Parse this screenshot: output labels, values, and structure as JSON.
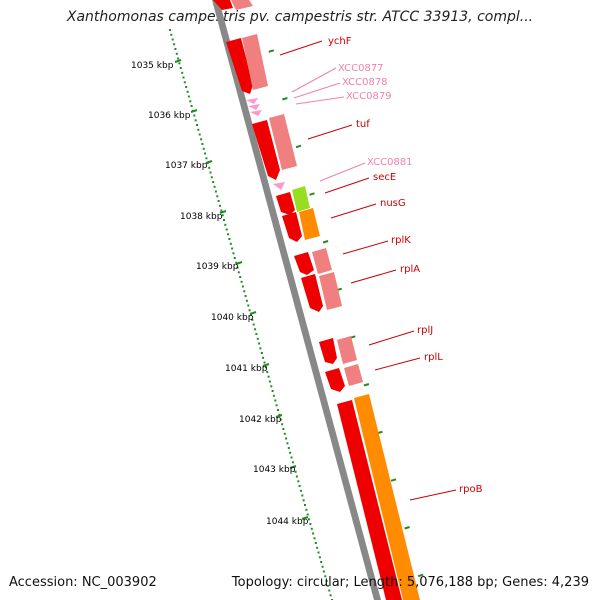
{
  "title": "Xanthomonas campestris pv. campestris str. ATCC 33913, compl...",
  "footer": {
    "accession": "Accession: NC_003902",
    "summary": "Topology: circular; Length: 5,076,188 bp; Genes: 4,239"
  },
  "scale": {
    "ticks": [
      "1035 kbp",
      "1036 kbp",
      "1037 kbp",
      "1038 kbp",
      "1039 kbp",
      "1040 kbp",
      "1041 kbp",
      "1042 kbp",
      "1043 kbp",
      "1044 kbp"
    ]
  },
  "genes": [
    {
      "name": "ychF",
      "color": "#cc0000"
    },
    {
      "name": "XCC0877",
      "color": "#f080b0"
    },
    {
      "name": "XCC0878",
      "color": "#f080b0"
    },
    {
      "name": "XCC0879",
      "color": "#f080b0"
    },
    {
      "name": "tuf",
      "color": "#cc0000"
    },
    {
      "name": "XCC0881",
      "color": "#f080b0"
    },
    {
      "name": "secE",
      "color": "#cc0000"
    },
    {
      "name": "nusG",
      "color": "#cc0000"
    },
    {
      "name": "rplK",
      "color": "#cc0000"
    },
    {
      "name": "rplA",
      "color": "#cc0000"
    },
    {
      "name": "rplJ",
      "color": "#cc0000"
    },
    {
      "name": "rplL",
      "color": "#cc0000"
    },
    {
      "name": "rpoB",
      "color": "#cc0000"
    }
  ],
  "colors": {
    "backbone": "#888888",
    "cds_red": "#ee0000",
    "cds_pink": "#f08080",
    "cds_orange": "#ff8c00",
    "cds_green": "#99dd22",
    "trna_pink": "#ff99cc",
    "tick_green": "#228b22"
  }
}
